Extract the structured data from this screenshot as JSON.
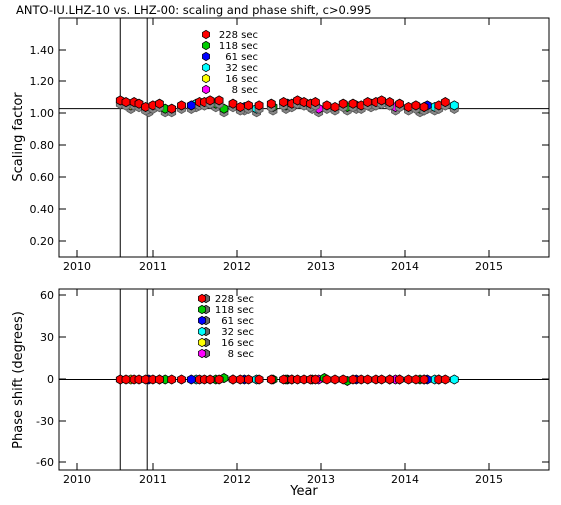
{
  "chart_data": [
    {
      "type": "scatter",
      "title": "ANTO-IU.LHZ-10 vs. LHZ-00: scaling and phase shift, c>0.995",
      "xlabel": "",
      "ylabel": "Scaling factor",
      "xlim": [
        2009.8,
        2015.8
      ],
      "ylim": [
        0.1,
        1.55
      ],
      "xticks": [
        "2010",
        "2011",
        "2012",
        "2013",
        "2014",
        "2015"
      ],
      "yticks": [
        "0.20",
        "0.40",
        "0.60",
        "0.80",
        "1.00",
        "1.20",
        "1.40"
      ],
      "reference_line": 1.0,
      "event_lines": [
        2010.55,
        2010.88
      ],
      "legend": [
        "228 sec",
        "118 sec",
        "61 sec",
        "32 sec",
        "16 sec",
        "8 sec"
      ],
      "legend_position": "top-center",
      "period_colors": [
        "#ff0000",
        "#00cc00",
        "#0000ff",
        "#00ffff",
        "#ffff00",
        "#ff00ff"
      ],
      "series_by_period": {
        "228": {
          "x": [
            2010.55,
            2010.62,
            2010.72,
            2010.78,
            2010.86,
            2010.95,
            2011.03,
            2011.18,
            2011.3,
            2011.52,
            2011.58,
            2011.65,
            2011.76,
            2011.93,
            2012.02,
            2012.12,
            2012.25,
            2012.4,
            2012.55,
            2012.65,
            2012.72,
            2012.8,
            2012.88,
            2012.94,
            2013.08,
            2013.18,
            2013.28,
            2013.4,
            2013.5,
            2013.58,
            2013.68,
            2013.75,
            2013.85,
            2013.97,
            2014.08,
            2014.17,
            2014.27,
            2014.45,
            2014.53
          ],
          "y": [
            1.05,
            1.04,
            1.04,
            1.03,
            1.01,
            1.02,
            1.03,
            1.0,
            1.02,
            1.04,
            1.04,
            1.05,
            1.05,
            1.03,
            1.01,
            1.02,
            1.02,
            1.03,
            1.04,
            1.03,
            1.05,
            1.04,
            1.03,
            1.04,
            1.02,
            1.01,
            1.03,
            1.03,
            1.02,
            1.04,
            1.04,
            1.05,
            1.04,
            1.03,
            1.01,
            1.02,
            1.01,
            1.02,
            1.04
          ]
        },
        "118": {
          "x": [
            2011.1,
            2011.72,
            2011.82,
            2012.42,
            2012.58,
            2013.33,
            2013.62,
            2014.22
          ],
          "y": [
            1.0,
            1.03,
            1.0,
            1.01,
            1.02,
            1.01,
            1.03,
            1.0
          ]
        },
        "61": {
          "x": [
            2010.9,
            2011.42,
            2012.07,
            2012.6,
            2013.44,
            2014.31
          ],
          "y": [
            1.0,
            1.02,
            1.01,
            1.03,
            1.02,
            1.02
          ]
        },
        "32": {
          "x": [
            2011.48,
            2012.22,
            2014.4,
            2014.64
          ],
          "y": [
            1.03,
            1.0,
            1.01,
            1.02
          ]
        },
        "16": {
          "x": [
            2010.68,
            2012.9
          ],
          "y": [
            1.02,
            1.02
          ]
        },
        "8": {
          "x": [
            2012.98,
            2013.92
          ],
          "y": [
            1.0,
            1.01
          ]
        }
      }
    },
    {
      "type": "scatter",
      "title": "",
      "xlabel": "Year",
      "ylabel": "Phase shift (degrees)",
      "xlim": [
        2009.8,
        2015.8
      ],
      "ylim": [
        -65,
        65
      ],
      "xticks": [
        "2010",
        "2011",
        "2012",
        "2013",
        "2014",
        "2015"
      ],
      "yticks": [
        "-60",
        "-30",
        "0",
        "30",
        "60"
      ],
      "reference_line": 0,
      "event_lines": [
        2010.55,
        2010.88
      ],
      "legend": [
        "228 sec",
        "118 sec",
        "61 sec",
        "32 sec",
        "16 sec",
        "8 sec"
      ],
      "legend_position": "top-center",
      "period_colors": [
        "#ff0000",
        "#00cc00",
        "#0000ff",
        "#00ffff",
        "#ffff00",
        "#ff00ff"
      ],
      "series_by_period": {
        "228": {
          "x": [
            2010.55,
            2010.62,
            2010.72,
            2010.78,
            2010.86,
            2010.95,
            2011.03,
            2011.18,
            2011.3,
            2011.52,
            2011.58,
            2011.65,
            2011.76,
            2011.93,
            2012.02,
            2012.12,
            2012.25,
            2012.4,
            2012.55,
            2012.65,
            2012.72,
            2012.8,
            2012.88,
            2012.94,
            2013.08,
            2013.18,
            2013.28,
            2013.4,
            2013.5,
            2013.58,
            2013.68,
            2013.75,
            2013.85,
            2013.97,
            2014.08,
            2014.17,
            2014.27,
            2014.45,
            2014.53
          ],
          "y": [
            0,
            0,
            0,
            0,
            0,
            0,
            0,
            0,
            0,
            0,
            0,
            0,
            0,
            0,
            0,
            0,
            0,
            0,
            0,
            0,
            0,
            0,
            0,
            0,
            0,
            0,
            0,
            0,
            0,
            0,
            0,
            0,
            0,
            0,
            0,
            0,
            0,
            0,
            0
          ]
        },
        "118": {
          "x": [
            2011.1,
            2011.72,
            2011.82,
            2012.42,
            2012.58,
            2013.05,
            2013.33,
            2014.22
          ],
          "y": [
            0,
            0,
            1,
            0,
            0,
            1,
            -1,
            0
          ]
        },
        "61": {
          "x": [
            2010.9,
            2011.42,
            2012.07,
            2012.6,
            2013.44,
            2014.31
          ],
          "y": [
            0,
            0,
            0,
            0,
            0,
            0
          ]
        },
        "32": {
          "x": [
            2011.48,
            2012.22,
            2014.4,
            2014.64
          ],
          "y": [
            0,
            0,
            0,
            0
          ]
        },
        "16": {
          "x": [
            2010.68,
            2012.9
          ],
          "y": [
            0,
            0
          ]
        },
        "8": {
          "x": [
            2012.98,
            2013.92
          ],
          "y": [
            0,
            0
          ]
        }
      }
    }
  ]
}
